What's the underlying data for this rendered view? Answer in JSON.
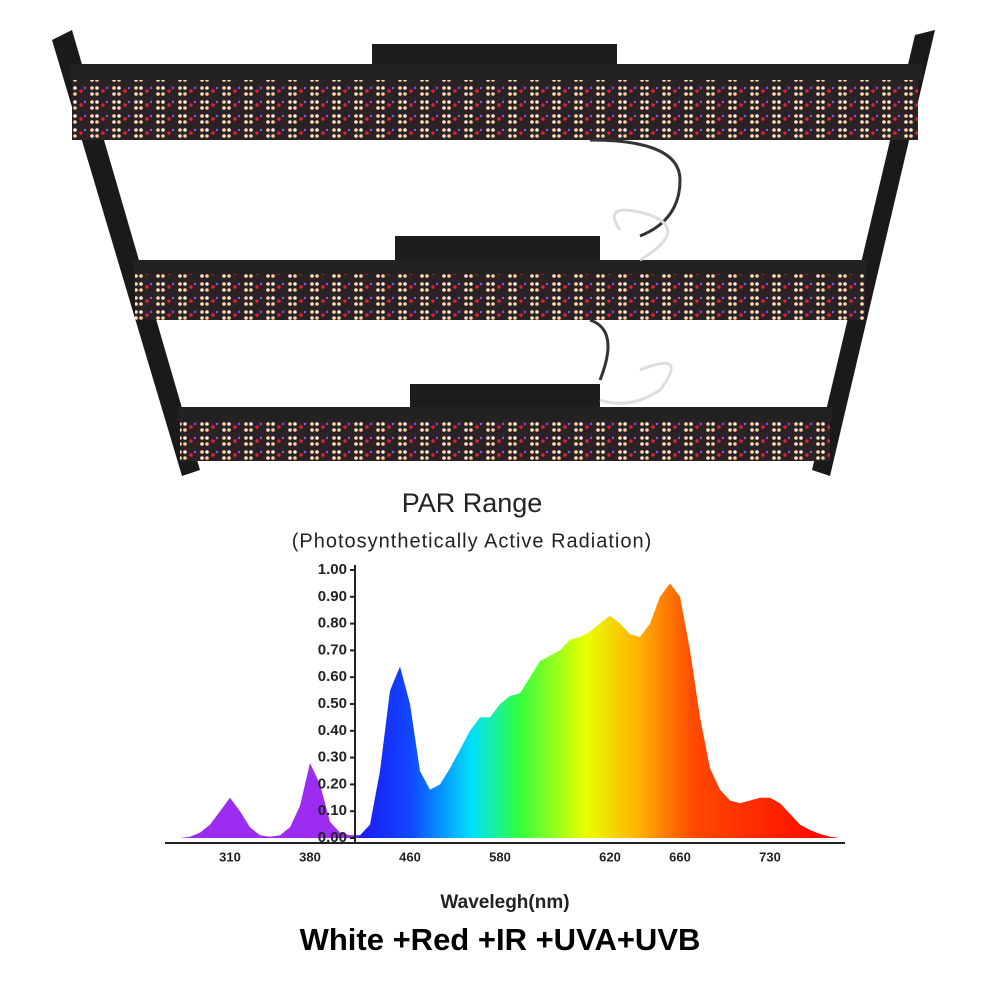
{
  "chart_data": {
    "type": "area",
    "title": "PAR Range",
    "subtitle": "(Photosynthetically Active Radiation)",
    "x_label": "Wavelegh(nm)",
    "caption": "White +Red +IR +UVA+UVB",
    "categories": [
      null,
      null,
      null,
      null,
      null,
      null,
      "310",
      null,
      null,
      null,
      null,
      null,
      null,
      null,
      "380",
      null,
      null,
      null,
      null,
      null,
      null,
      null,
      null,
      null,
      "460",
      null,
      null,
      null,
      null,
      null,
      null,
      null,
      null,
      "580",
      null,
      null,
      null,
      null,
      null,
      null,
      null,
      null,
      null,
      null,
      "620",
      null,
      null,
      null,
      null,
      null,
      null,
      "660",
      null,
      null,
      null,
      null,
      null,
      null,
      null,
      null,
      "730",
      null,
      null,
      null,
      null,
      null,
      null,
      null
    ],
    "values": [
      0,
      0,
      0.005,
      0.02,
      0.05,
      0.1,
      0.15,
      0.1,
      0.04,
      0.01,
      0.005,
      0.01,
      0.04,
      0.12,
      0.28,
      0.2,
      0.06,
      0.02,
      0.01,
      0.01,
      0.05,
      0.25,
      0.55,
      0.64,
      0.5,
      0.25,
      0.18,
      0.2,
      0.26,
      0.33,
      0.4,
      0.45,
      0.45,
      0.5,
      0.53,
      0.54,
      0.6,
      0.66,
      0.68,
      0.7,
      0.74,
      0.75,
      0.77,
      0.8,
      0.83,
      0.8,
      0.76,
      0.75,
      0.8,
      0.9,
      0.95,
      0.9,
      0.7,
      0.45,
      0.26,
      0.18,
      0.14,
      0.13,
      0.14,
      0.15,
      0.15,
      0.13,
      0.09,
      0.05,
      0.03,
      0.015,
      0.005,
      0
    ],
    "ylim": [
      0,
      1
    ],
    "yticks": [
      {
        "value": 0,
        "label": "0.00"
      },
      {
        "value": 0.1,
        "label": "0.10"
      },
      {
        "value": 0.2,
        "label": "0.20"
      },
      {
        "value": 0.3,
        "label": "0.30"
      },
      {
        "value": 0.4,
        "label": "0.40"
      },
      {
        "value": 0.5,
        "label": "0.50"
      },
      {
        "value": 0.6,
        "label": "0.60"
      },
      {
        "value": 0.7,
        "label": "0.70"
      },
      {
        "value": 0.8,
        "label": "0.80"
      },
      {
        "value": 0.9,
        "label": "0.90"
      },
      {
        "value": 1,
        "label": "1.00"
      }
    ]
  }
}
